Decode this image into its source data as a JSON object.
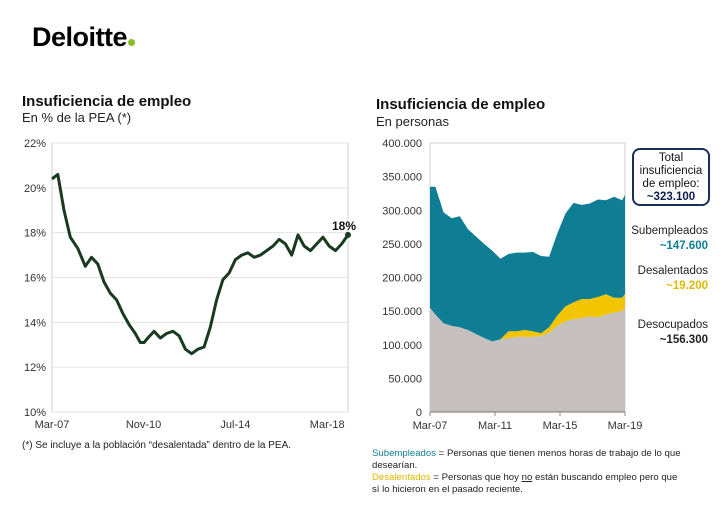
{
  "brand": {
    "name": "Deloitte",
    "accent": "#86bc25"
  },
  "left_panel": {
    "title": "Insuficiencia de empleo",
    "subtitle": "En % de la PEA (*)",
    "footnote": "(*) Se incluye a la población “desalentada” dentro de la PEA.",
    "end_label": "18%"
  },
  "right_panel": {
    "title": "Insuficiencia de empleo",
    "subtitle": "En personas",
    "total": {
      "line1": "Total",
      "line2": "insuficiencia",
      "line3": "de empleo:",
      "value": "~323.100"
    },
    "labels": {
      "sub": {
        "name": "Subempleados",
        "value": "~147.600"
      },
      "des": {
        "name": "Desalentados",
        "value": "~19.200"
      },
      "deso": {
        "name": "Desocupados",
        "value": "~156.300"
      }
    },
    "notes": {
      "sub_term": "Subempleados",
      "sub_def": " = Personas que tienen menos horas de trabajo de lo que desearían.",
      "des_term": "Desalentados",
      "des_def_a": " = Personas que hoy ",
      "des_def_u": "no",
      "des_def_b": " están buscando empleo pero que sí lo hicieron en el pasado reciente."
    }
  },
  "colors": {
    "line": "#1a3a1f",
    "sub": "#0f7d93",
    "des": "#f2c500",
    "deso": "#c5c0bd"
  },
  "chart_data": [
    {
      "type": "line",
      "title": "Insuficiencia de empleo",
      "subtitle": "En % de la PEA (*)",
      "x_ticks": [
        "Mar-07",
        "Nov-10",
        "Jul-14",
        "Mar-18"
      ],
      "y_ticks": [
        "22%",
        "20%",
        "18%",
        "16%",
        "14%",
        "12%",
        "10%"
      ],
      "ylim": [
        10,
        22
      ],
      "xlim": [
        2007.17,
        2019.0
      ],
      "series": [
        {
          "x": [
            2007.17,
            2007.4,
            2007.65,
            2007.9,
            2008.2,
            2008.5,
            2008.75,
            2009.0,
            2009.25,
            2009.5,
            2009.75,
            2010.0,
            2010.25,
            2010.5,
            2010.7,
            2010.85,
            2011.0,
            2011.25,
            2011.5,
            2011.75,
            2012.0,
            2012.25,
            2012.5,
            2012.75,
            2013.0,
            2013.25,
            2013.5,
            2013.75,
            2014.0,
            2014.25,
            2014.5,
            2014.75,
            2015.0,
            2015.25,
            2015.5,
            2015.75,
            2016.0,
            2016.25,
            2016.5,
            2016.75,
            2017.0,
            2017.25,
            2017.5,
            2017.75,
            2018.0,
            2018.25,
            2018.5,
            2018.75,
            2019.0
          ],
          "y": [
            20.4,
            20.6,
            19.0,
            17.8,
            17.3,
            16.5,
            16.9,
            16.6,
            15.8,
            15.3,
            15.0,
            14.4,
            13.9,
            13.5,
            13.1,
            13.1,
            13.3,
            13.6,
            13.3,
            13.5,
            13.6,
            13.4,
            12.8,
            12.6,
            12.8,
            12.9,
            13.8,
            15.0,
            15.9,
            16.2,
            16.8,
            17.0,
            17.1,
            16.9,
            17.0,
            17.2,
            17.4,
            17.7,
            17.5,
            17.0,
            17.9,
            17.4,
            17.2,
            17.5,
            17.8,
            17.4,
            17.2,
            17.5,
            17.9
          ]
        }
      ],
      "annotations": [
        "18%"
      ]
    },
    {
      "type": "area",
      "title": "Insuficiencia de empleo",
      "subtitle": "En personas",
      "x_ticks": [
        "Mar-07",
        "Mar-11",
        "Mar-15",
        "Mar-19"
      ],
      "y_ticks": [
        "400.000",
        "350.000",
        "300.000",
        "250.000",
        "200.000",
        "150.000",
        "100.000",
        "50.000",
        "0"
      ],
      "ylim": [
        0,
        400000
      ],
      "xlim": [
        2007.17,
        2019.17
      ],
      "stacked": true,
      "x": [
        2007.17,
        2007.5,
        2008.0,
        2008.5,
        2009.0,
        2009.5,
        2010.0,
        2010.5,
        2011.0,
        2011.5,
        2012.0,
        2012.5,
        2013.0,
        2013.5,
        2014.0,
        2014.5,
        2015.0,
        2015.5,
        2016.0,
        2016.5,
        2017.0,
        2017.5,
        2018.0,
        2018.5,
        2019.0,
        2019.17
      ],
      "series": [
        {
          "name": "Desocupados",
          "values": [
            155000,
            145000,
            132000,
            128000,
            126000,
            122000,
            116000,
            110000,
            105000,
            108000,
            110000,
            112000,
            112000,
            112000,
            113000,
            118000,
            128000,
            135000,
            138000,
            140000,
            142000,
            141000,
            145000,
            148000,
            150000,
            156300
          ]
        },
        {
          "name": "Desalentados",
          "values": [
            0,
            0,
            0,
            0,
            0,
            0,
            0,
            0,
            0,
            0,
            10000,
            8000,
            10000,
            8000,
            4000,
            8000,
            15000,
            22000,
            25000,
            28000,
            26000,
            30000,
            30000,
            22000,
            20000,
            19200
          ]
        },
        {
          "name": "Subempleados",
          "values": [
            180000,
            190000,
            165000,
            160000,
            165000,
            150000,
            145000,
            140000,
            135000,
            120000,
            115000,
            117000,
            115000,
            118000,
            115000,
            105000,
            122000,
            138000,
            148000,
            140000,
            142000,
            145000,
            140000,
            150000,
            145000,
            147600
          ]
        }
      ]
    }
  ]
}
